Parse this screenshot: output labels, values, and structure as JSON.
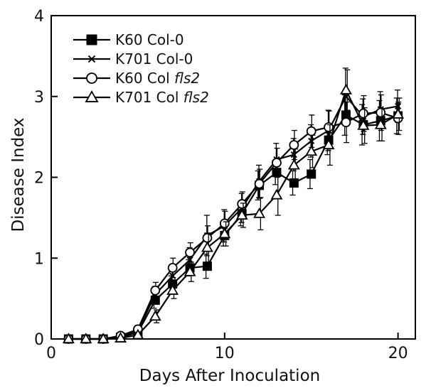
{
  "chart_data": {
    "type": "line",
    "xlabel": "Days After Inoculation",
    "ylabel": "Disease Index",
    "xlim": [
      0,
      21
    ],
    "ylim": [
      0,
      4
    ],
    "x_ticks": [
      0,
      10,
      20
    ],
    "y_ticks": [
      0,
      1,
      2,
      3,
      4
    ],
    "grid": false,
    "legend_position": "top-left",
    "x": [
      1,
      2,
      3,
      4,
      5,
      6,
      7,
      8,
      9,
      10,
      11,
      12,
      13,
      14,
      15,
      16,
      17,
      18,
      19,
      20
    ],
    "series": [
      {
        "name": "K60 Col-0",
        "label_main": "K60 Col-0",
        "label_italic": "",
        "marker": "filled-square",
        "color": "#000000",
        "values": [
          0,
          0,
          0,
          0.02,
          0.08,
          0.48,
          0.68,
          0.88,
          0.9,
          1.28,
          1.55,
          1.9,
          2.06,
          1.93,
          2.04,
          2.46,
          2.77,
          2.65,
          2.7,
          2.76
        ],
        "errors": [
          0,
          0,
          0,
          0.02,
          0.04,
          0.1,
          0.1,
          0.1,
          0.15,
          0.13,
          0.15,
          0.18,
          0.15,
          0.15,
          0.18,
          0.18,
          0.25,
          0.25,
          0.25,
          0.22
        ]
      },
      {
        "name": "K701 Col-0",
        "label_main": "K701 Col-0",
        "label_italic": "",
        "marker": "x",
        "color": "#000000",
        "values": [
          0,
          0,
          0,
          0.02,
          0.1,
          0.55,
          0.78,
          0.98,
          1.28,
          1.4,
          1.62,
          1.95,
          2.22,
          2.28,
          2.45,
          2.58,
          3.0,
          2.75,
          2.84,
          2.88
        ],
        "errors": [
          0,
          0,
          0,
          0.02,
          0.05,
          0.1,
          0.12,
          0.15,
          0.25,
          0.2,
          0.18,
          0.2,
          0.2,
          0.2,
          0.2,
          0.25,
          0.35,
          0.22,
          0.22,
          0.2
        ]
      },
      {
        "name": "K60 Col fls2",
        "label_main": "K60 Col ",
        "label_italic": "fls2",
        "marker": "open-circle",
        "color": "#000000",
        "values": [
          0,
          0,
          0,
          0.04,
          0.12,
          0.6,
          0.88,
          1.07,
          1.25,
          1.43,
          1.67,
          1.92,
          2.18,
          2.4,
          2.57,
          2.62,
          2.68,
          2.79,
          2.8,
          2.73
        ],
        "errors": [
          0,
          0,
          0,
          0.02,
          0.05,
          0.1,
          0.12,
          0.12,
          0.15,
          0.15,
          0.15,
          0.18,
          0.18,
          0.18,
          0.2,
          0.2,
          0.25,
          0.22,
          0.22,
          0.2
        ]
      },
      {
        "name": "K701 Col fls2",
        "label_main": "K701 Col ",
        "label_italic": "fls2",
        "marker": "open-triangle",
        "color": "#000000",
        "values": [
          0,
          0,
          0,
          0.01,
          0.05,
          0.28,
          0.6,
          0.83,
          1.13,
          1.3,
          1.53,
          1.55,
          1.78,
          2.15,
          2.32,
          2.4,
          3.08,
          2.64,
          2.65,
          2.78
        ],
        "errors": [
          0,
          0,
          0,
          0.01,
          0.03,
          0.08,
          0.1,
          0.12,
          0.18,
          0.15,
          0.15,
          0.2,
          0.25,
          0.2,
          0.2,
          0.25,
          0.25,
          0.22,
          0.2,
          0.2
        ]
      }
    ]
  }
}
